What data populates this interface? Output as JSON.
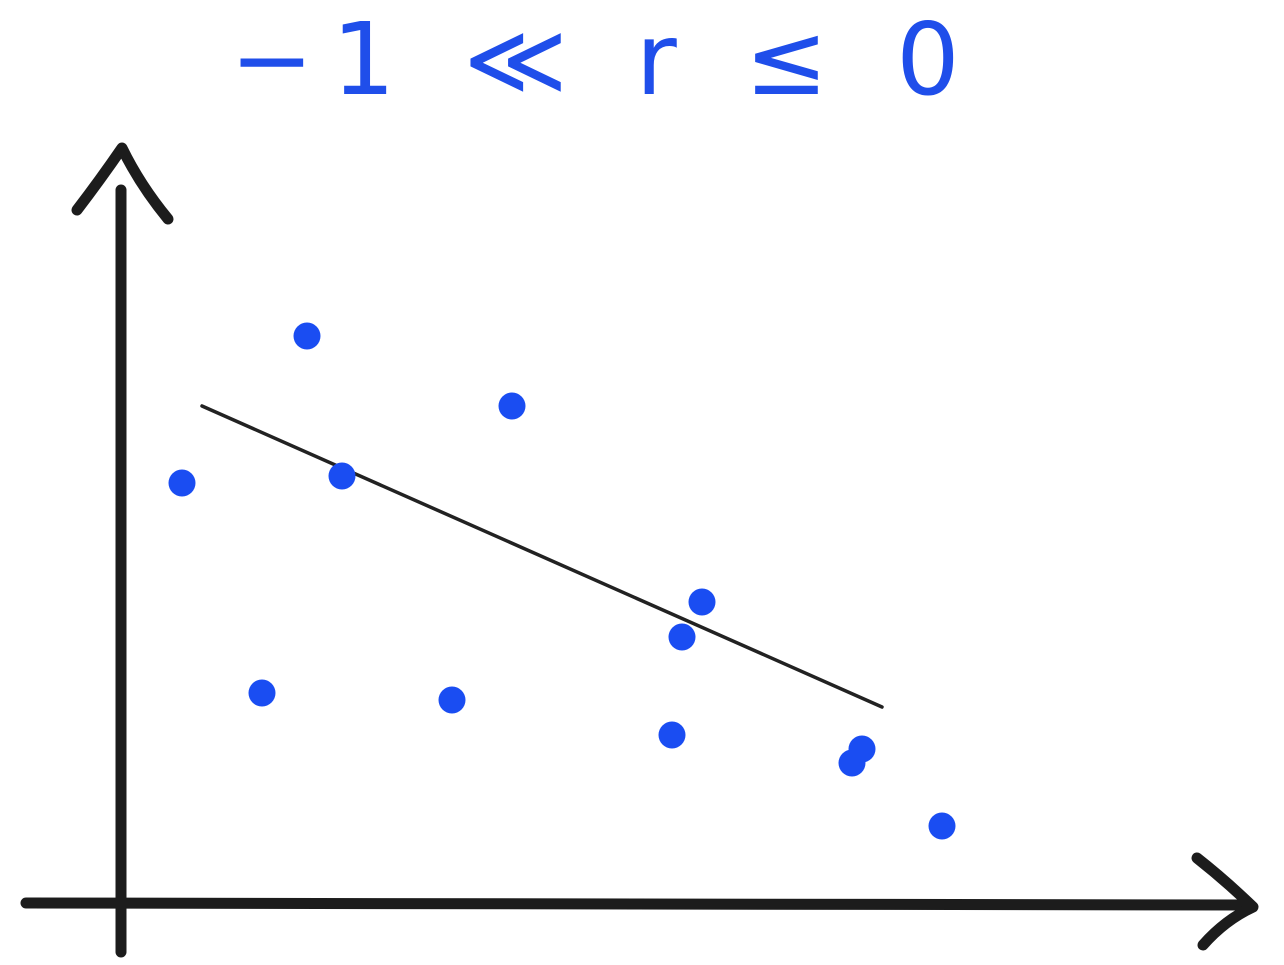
{
  "chart_data": {
    "type": "scatter",
    "title": "−1 ≪ r ≤ 0",
    "xlabel": "",
    "ylabel": "",
    "grid": false,
    "legend": "none",
    "axis_ticks": "none",
    "xlim": [
      0,
      10
    ],
    "ylim": [
      0,
      10
    ],
    "points": [
      {
        "x": 0.6,
        "y": 6.0
      },
      {
        "x": 1.4,
        "y": 3.0
      },
      {
        "x": 1.85,
        "y": 8.1
      },
      {
        "x": 2.2,
        "y": 6.1
      },
      {
        "x": 3.3,
        "y": 2.9
      },
      {
        "x": 3.9,
        "y": 7.1
      },
      {
        "x": 5.5,
        "y": 2.4
      },
      {
        "x": 5.6,
        "y": 3.8
      },
      {
        "x": 5.8,
        "y": 4.3
      },
      {
        "x": 7.3,
        "y": 2.0
      },
      {
        "x": 7.4,
        "y": 2.2
      },
      {
        "x": 8.2,
        "y": 1.1
      }
    ],
    "trend_line": {
      "x": [
        0.8,
        7.6
      ],
      "y": [
        7.1,
        2.8
      ]
    },
    "colors": {
      "points": "#1a4df2",
      "title": "#1f4eea",
      "axes": "#1c1c1c",
      "trend_line": "#222222",
      "background": "#ffffff"
    }
  }
}
